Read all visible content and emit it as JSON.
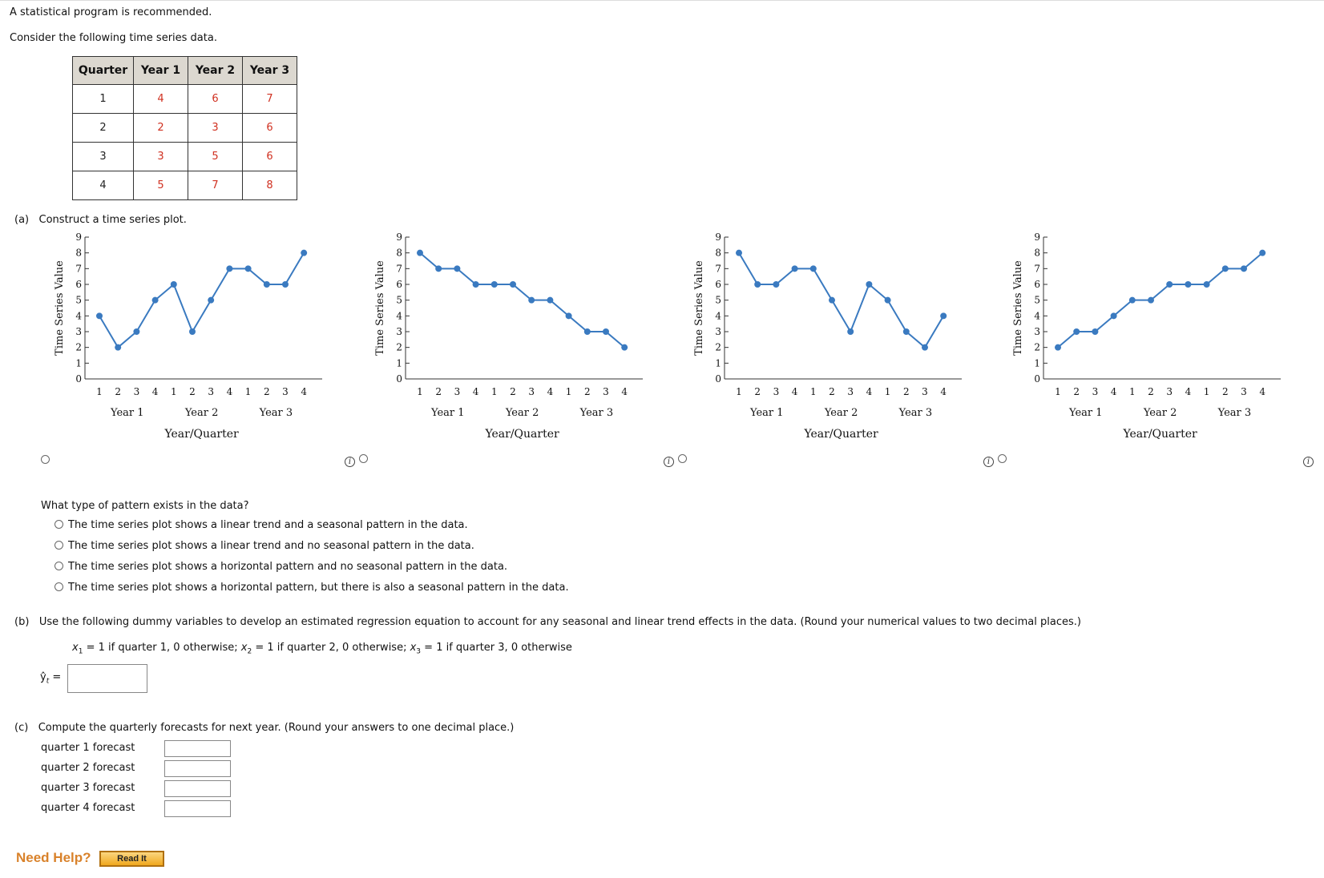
{
  "intro": "A statistical program is recommended.",
  "prompt": "Consider the following time series data.",
  "table": {
    "headers": [
      "Quarter",
      "Year 1",
      "Year 2",
      "Year 3"
    ],
    "rows": [
      {
        "quarter": "1",
        "values": [
          "4",
          "6",
          "7"
        ]
      },
      {
        "quarter": "2",
        "values": [
          "2",
          "3",
          "6"
        ]
      },
      {
        "quarter": "3",
        "values": [
          "3",
          "5",
          "6"
        ]
      },
      {
        "quarter": "4",
        "values": [
          "5",
          "7",
          "8"
        ]
      }
    ]
  },
  "part_a": {
    "label": "(a)",
    "text": "Construct a time series plot.",
    "question": "What type of pattern exists in the data?",
    "options": [
      "The time series plot shows a linear trend and a seasonal pattern in the data.",
      "The time series plot shows a linear trend and no seasonal pattern in the data.",
      "The time series plot shows a horizontal pattern and no seasonal pattern in the data.",
      "The time series plot shows a horizontal pattern, but there is also a seasonal pattern in the data."
    ]
  },
  "chart_data": [
    {
      "type": "line",
      "ylabel": "Time Series Value",
      "xlabel": "Year/Quarter",
      "ylim": [
        0,
        9
      ],
      "yticks": [
        "0",
        "1",
        "2",
        "3",
        "4",
        "5",
        "6",
        "7",
        "8",
        "9"
      ],
      "quarters": [
        "1",
        "2",
        "3",
        "4",
        "1",
        "2",
        "3",
        "4",
        "1",
        "2",
        "3",
        "4"
      ],
      "years": [
        "Year 1",
        "Year 2",
        "Year 3"
      ],
      "values": [
        4,
        2,
        3,
        5,
        6,
        3,
        5,
        7,
        7,
        6,
        6,
        8
      ]
    },
    {
      "type": "line",
      "ylabel": "Time Series Value",
      "xlabel": "Year/Quarter",
      "ylim": [
        0,
        9
      ],
      "yticks": [
        "0",
        "1",
        "2",
        "3",
        "4",
        "5",
        "6",
        "7",
        "8",
        "9"
      ],
      "quarters": [
        "1",
        "2",
        "3",
        "4",
        "1",
        "2",
        "3",
        "4",
        "1",
        "2",
        "3",
        "4"
      ],
      "years": [
        "Year 1",
        "Year 2",
        "Year 3"
      ],
      "values": [
        8,
        7,
        7,
        6,
        6,
        6,
        5,
        5,
        4,
        3,
        3,
        2
      ]
    },
    {
      "type": "line",
      "ylabel": "Time Series Value",
      "xlabel": "Year/Quarter",
      "ylim": [
        0,
        9
      ],
      "yticks": [
        "0",
        "1",
        "2",
        "3",
        "4",
        "5",
        "6",
        "7",
        "8",
        "9"
      ],
      "quarters": [
        "1",
        "2",
        "3",
        "4",
        "1",
        "2",
        "3",
        "4",
        "1",
        "2",
        "3",
        "4"
      ],
      "years": [
        "Year 1",
        "Year 2",
        "Year 3"
      ],
      "values": [
        8,
        6,
        6,
        7,
        7,
        5,
        3,
        6,
        5,
        3,
        2,
        4
      ]
    },
    {
      "type": "line",
      "ylabel": "Time Series Value",
      "xlabel": "Year/Quarter",
      "ylim": [
        0,
        9
      ],
      "yticks": [
        "0",
        "1",
        "2",
        "3",
        "4",
        "5",
        "6",
        "7",
        "8",
        "9"
      ],
      "quarters": [
        "1",
        "2",
        "3",
        "4",
        "1",
        "2",
        "3",
        "4",
        "1",
        "2",
        "3",
        "4"
      ],
      "years": [
        "Year 1",
        "Year 2",
        "Year 3"
      ],
      "values": [
        2,
        3,
        3,
        4,
        5,
        5,
        6,
        6,
        6,
        7,
        7,
        8
      ]
    }
  ],
  "part_b": {
    "label": "(b)",
    "text": "Use the following dummy variables to develop an estimated regression equation to account for any seasonal and linear trend effects in the data. (Round your numerical values to two decimal places.)",
    "dummy": {
      "x1_var": "x",
      "x1_sub": "1",
      "x1_def": " = 1 if quarter 1, 0 otherwise; ",
      "x2_var": "x",
      "x2_sub": "2",
      "x2_def": " = 1 if quarter 2, 0 otherwise; ",
      "x3_var": "x",
      "x3_sub": "3",
      "x3_def": " = 1 if quarter 3, 0 otherwise"
    },
    "yhat": "ŷ",
    "yhat_sub": "t",
    "equals": " ="
  },
  "part_c": {
    "label": "(c)",
    "text": "Compute the quarterly forecasts for next year. (Round your answers to one decimal place.)",
    "forecasts": [
      "quarter 1 forecast",
      "quarter 2 forecast",
      "quarter 3 forecast",
      "quarter 4 forecast"
    ]
  },
  "help": {
    "need_help": "Need Help?",
    "read_it": "Read It"
  },
  "colors": {
    "line": "#3a7ac0",
    "table_value": "#d03020",
    "need_help": "#d9822b"
  }
}
